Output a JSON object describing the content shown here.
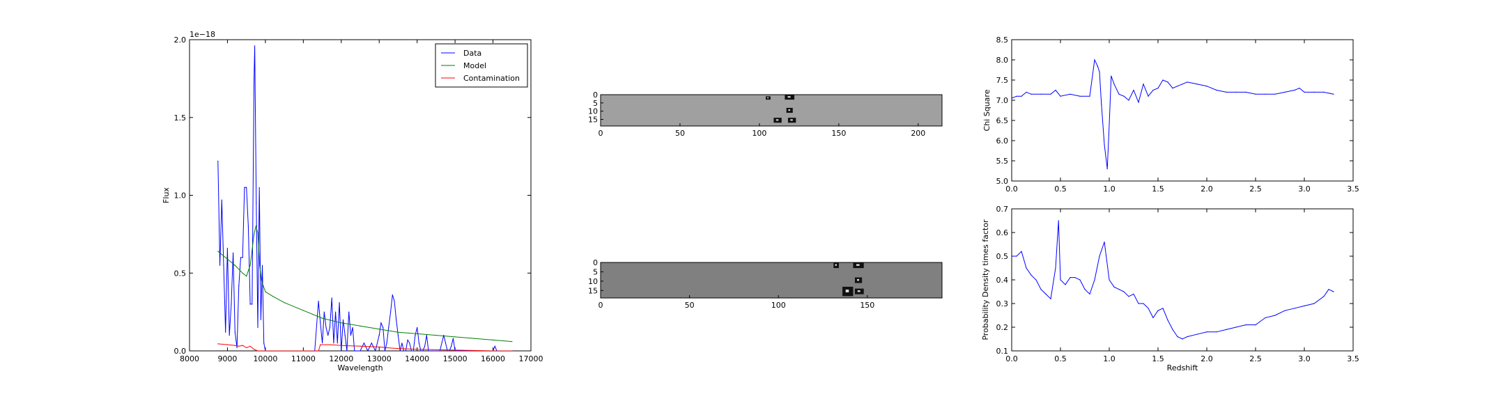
{
  "chart_data": [
    {
      "type": "line",
      "xlabel": "Wavelength",
      "ylabel": "Flux",
      "offset_label": "1e−18",
      "xlim": [
        8000,
        17000
      ],
      "ylim": [
        0.0,
        2.0
      ],
      "xticks": [
        8000,
        9000,
        10000,
        11000,
        12000,
        13000,
        14000,
        15000,
        16000,
        17000
      ],
      "yticks": [
        0.0,
        0.5,
        1.0,
        1.5,
        2.0
      ],
      "ytick_labels": [
        "0.0",
        "0.5",
        "1.0",
        "1.5",
        "2.0"
      ],
      "legend_position": "top-right",
      "series": [
        {
          "name": "Data",
          "color": "#0000ff",
          "x": [
            8750,
            8800,
            8850,
            8900,
            8950,
            9000,
            9050,
            9100,
            9150,
            9200,
            9250,
            9300,
            9350,
            9400,
            9450,
            9500,
            9550,
            9600,
            9650,
            9700,
            9720,
            9760,
            9800,
            9840,
            9880,
            9920,
            9960,
            10000,
            10100,
            10500,
            11000,
            11300,
            11400,
            11450,
            11500,
            11550,
            11600,
            11650,
            11700,
            11750,
            11800,
            11850,
            11900,
            11950,
            12000,
            12050,
            12100,
            12150,
            12200,
            12250,
            12300,
            12350,
            12400,
            12450,
            12500,
            12600,
            12700,
            12800,
            12900,
            13000,
            13050,
            13100,
            13150,
            13200,
            13250,
            13300,
            13350,
            13400,
            13450,
            13500,
            13550,
            13600,
            13650,
            13700,
            13750,
            13800,
            13850,
            13900,
            13950,
            14000,
            14050,
            14100,
            14150,
            14200,
            14250,
            14300,
            14400,
            14500,
            14600,
            14700,
            14750,
            14800,
            14850,
            14900,
            14950,
            15000,
            15100,
            15300,
            15500,
            15700,
            15900,
            16000,
            16050,
            16100,
            16200,
            16500
          ],
          "y": [
            1.22,
            0.55,
            0.97,
            0.55,
            0.12,
            0.66,
            0.1,
            0.3,
            0.63,
            0.12,
            0.02,
            0.42,
            0.6,
            0.6,
            1.05,
            1.05,
            0.8,
            0.3,
            0.3,
            1.75,
            1.96,
            0.95,
            0.15,
            1.05,
            0.2,
            0.55,
            0.05,
            0.0,
            0.0,
            0.0,
            0.0,
            0.0,
            0.32,
            0.18,
            0.05,
            0.25,
            0.15,
            0.1,
            0.15,
            0.34,
            0.05,
            0.25,
            0.05,
            0.31,
            0.0,
            0.2,
            0.1,
            0.0,
            0.25,
            0.1,
            0.15,
            0.0,
            0.0,
            0.0,
            0.0,
            0.05,
            0.0,
            0.05,
            0.0,
            0.1,
            0.18,
            0.15,
            0.0,
            0.05,
            0.15,
            0.25,
            0.36,
            0.32,
            0.2,
            0.1,
            0.0,
            0.05,
            0.0,
            0.0,
            0.07,
            0.05,
            0.0,
            0.0,
            0.1,
            0.15,
            0.05,
            0.0,
            0.0,
            0.03,
            0.1,
            0.0,
            0.0,
            0.0,
            0.0,
            0.1,
            0.05,
            0.0,
            0.0,
            0.03,
            0.08,
            0.0,
            0.0,
            0.0,
            0.0,
            0.0,
            0.0,
            0.0,
            0.03,
            0.0,
            0.0,
            0.0
          ]
        },
        {
          "name": "Model",
          "color": "#008000",
          "x": [
            8750,
            9000,
            9200,
            9400,
            9500,
            9600,
            9700,
            9750,
            9800,
            9850,
            9900,
            10000,
            10200,
            10500,
            11000,
            11500,
            12000,
            12500,
            13000,
            13500,
            14000,
            14500,
            15000,
            15500,
            16000,
            16500
          ],
          "y": [
            0.64,
            0.59,
            0.55,
            0.5,
            0.48,
            0.55,
            0.75,
            0.8,
            0.76,
            0.55,
            0.45,
            0.38,
            0.35,
            0.31,
            0.26,
            0.21,
            0.18,
            0.16,
            0.14,
            0.12,
            0.11,
            0.1,
            0.09,
            0.08,
            0.07,
            0.06
          ]
        },
        {
          "name": "Contamination",
          "color": "#ff0000",
          "x": [
            8750,
            9000,
            9200,
            9300,
            9400,
            9500,
            9600,
            9700,
            9800,
            9900,
            10000,
            10500,
            11000,
            11400,
            11450,
            11700,
            12000,
            12500,
            13000,
            13200,
            13500,
            14000,
            15000,
            16000,
            16500
          ],
          "y": [
            0.045,
            0.04,
            0.035,
            0.03,
            0.035,
            0.02,
            0.03,
            0.01,
            0.0,
            0.0,
            0.0,
            0.0,
            0.0,
            0.0,
            0.04,
            0.04,
            0.035,
            0.03,
            0.025,
            0.02,
            0.015,
            0.01,
            0.005,
            0.0,
            0.0
          ]
        }
      ]
    },
    {
      "type": "heatmap",
      "xlim": [
        0,
        215
      ],
      "ylim": [
        19,
        0
      ],
      "xticks": [
        0,
        50,
        100,
        150,
        200
      ],
      "yticks": [
        0,
        5,
        10,
        15
      ],
      "background": "#a0a0a0",
      "dark_features": [
        {
          "x": [
            104,
            107
          ],
          "y": [
            1,
            3
          ]
        },
        {
          "x": [
            116,
            122
          ],
          "y": [
            0,
            3
          ]
        },
        {
          "x": [
            117,
            121
          ],
          "y": [
            8,
            11
          ]
        },
        {
          "x": [
            109,
            114
          ],
          "y": [
            14,
            17
          ]
        },
        {
          "x": [
            118,
            123
          ],
          "y": [
            14,
            17
          ]
        }
      ]
    },
    {
      "type": "heatmap",
      "xlim": [
        0,
        192
      ],
      "ylim": [
        19,
        0
      ],
      "xticks": [
        0,
        50,
        100,
        150
      ],
      "yticks": [
        0,
        5,
        10,
        15
      ],
      "background": "#808080",
      "dark_features": [
        {
          "x": [
            131,
            134
          ],
          "y": [
            0,
            3
          ]
        },
        {
          "x": [
            142,
            148
          ],
          "y": [
            0,
            3
          ]
        },
        {
          "x": [
            143,
            147
          ],
          "y": [
            8,
            11
          ]
        },
        {
          "x": [
            136,
            142
          ],
          "y": [
            13,
            18
          ]
        },
        {
          "x": [
            143,
            148
          ],
          "y": [
            14,
            17
          ]
        }
      ]
    },
    {
      "type": "line",
      "xlabel": "",
      "ylabel": "Chi Square",
      "xlim": [
        0.0,
        3.5
      ],
      "ylim": [
        5.0,
        8.5
      ],
      "xticks": [
        0.0,
        0.5,
        1.0,
        1.5,
        2.0,
        2.5,
        3.0,
        3.5
      ],
      "xtick_labels": [
        "0.0",
        "0.5",
        "1.0",
        "1.5",
        "2.0",
        "2.5",
        "3.0",
        "3.5"
      ],
      "yticks": [
        5.0,
        5.5,
        6.0,
        6.5,
        7.0,
        7.5,
        8.0,
        8.5
      ],
      "ytick_labels": [
        "5.0",
        "5.5",
        "6.0",
        "6.5",
        "7.0",
        "7.5",
        "8.0",
        "8.5"
      ],
      "series": [
        {
          "color": "#0000ff",
          "x": [
            0.0,
            0.05,
            0.1,
            0.15,
            0.2,
            0.3,
            0.4,
            0.45,
            0.5,
            0.6,
            0.7,
            0.8,
            0.85,
            0.88,
            0.9,
            0.92,
            0.95,
            0.98,
            1.0,
            1.02,
            1.05,
            1.1,
            1.15,
            1.2,
            1.25,
            1.3,
            1.35,
            1.4,
            1.45,
            1.5,
            1.55,
            1.6,
            1.65,
            1.7,
            1.75,
            1.8,
            1.9,
            2.0,
            2.1,
            2.2,
            2.3,
            2.4,
            2.5,
            2.6,
            2.7,
            2.8,
            2.9,
            2.95,
            3.0,
            3.1,
            3.2,
            3.3
          ],
          "y": [
            7.05,
            7.1,
            7.1,
            7.2,
            7.15,
            7.15,
            7.15,
            7.25,
            7.1,
            7.15,
            7.1,
            7.1,
            8.0,
            7.85,
            7.7,
            6.9,
            5.9,
            5.3,
            6.4,
            7.6,
            7.4,
            7.15,
            7.1,
            7.0,
            7.25,
            6.95,
            7.4,
            7.1,
            7.25,
            7.3,
            7.5,
            7.45,
            7.3,
            7.35,
            7.4,
            7.45,
            7.4,
            7.35,
            7.25,
            7.2,
            7.2,
            7.2,
            7.15,
            7.15,
            7.15,
            7.2,
            7.25,
            7.3,
            7.2,
            7.2,
            7.2,
            7.15
          ]
        }
      ]
    },
    {
      "type": "line",
      "xlabel": "Redshift",
      "ylabel": "Probability Density times factor",
      "xlim": [
        0.0,
        3.5
      ],
      "ylim": [
        0.1,
        0.7
      ],
      "xticks": [
        0.0,
        0.5,
        1.0,
        1.5,
        2.0,
        2.5,
        3.0,
        3.5
      ],
      "xtick_labels": [
        "0.0",
        "0.5",
        "1.0",
        "1.5",
        "2.0",
        "2.5",
        "3.0",
        "3.5"
      ],
      "yticks": [
        0.1,
        0.2,
        0.3,
        0.4,
        0.5,
        0.6,
        0.7
      ],
      "ytick_labels": [
        "0.1",
        "0.2",
        "0.3",
        "0.4",
        "0.5",
        "0.6",
        "0.7"
      ],
      "series": [
        {
          "color": "#0000ff",
          "x": [
            0.0,
            0.05,
            0.1,
            0.15,
            0.2,
            0.25,
            0.3,
            0.35,
            0.4,
            0.45,
            0.48,
            0.5,
            0.55,
            0.6,
            0.65,
            0.7,
            0.75,
            0.8,
            0.85,
            0.9,
            0.95,
            1.0,
            1.05,
            1.1,
            1.15,
            1.2,
            1.25,
            1.3,
            1.35,
            1.4,
            1.45,
            1.5,
            1.55,
            1.6,
            1.65,
            1.7,
            1.75,
            1.8,
            1.9,
            2.0,
            2.1,
            2.2,
            2.3,
            2.4,
            2.5,
            2.6,
            2.7,
            2.8,
            2.9,
            3.0,
            3.1,
            3.2,
            3.25,
            3.3
          ],
          "y": [
            0.5,
            0.5,
            0.52,
            0.45,
            0.42,
            0.4,
            0.36,
            0.34,
            0.32,
            0.45,
            0.65,
            0.4,
            0.38,
            0.41,
            0.41,
            0.4,
            0.36,
            0.34,
            0.4,
            0.5,
            0.56,
            0.4,
            0.37,
            0.36,
            0.35,
            0.33,
            0.34,
            0.3,
            0.3,
            0.28,
            0.24,
            0.27,
            0.28,
            0.23,
            0.19,
            0.16,
            0.15,
            0.16,
            0.17,
            0.18,
            0.18,
            0.19,
            0.2,
            0.21,
            0.21,
            0.24,
            0.25,
            0.27,
            0.28,
            0.29,
            0.3,
            0.33,
            0.36,
            0.35
          ]
        }
      ]
    }
  ]
}
